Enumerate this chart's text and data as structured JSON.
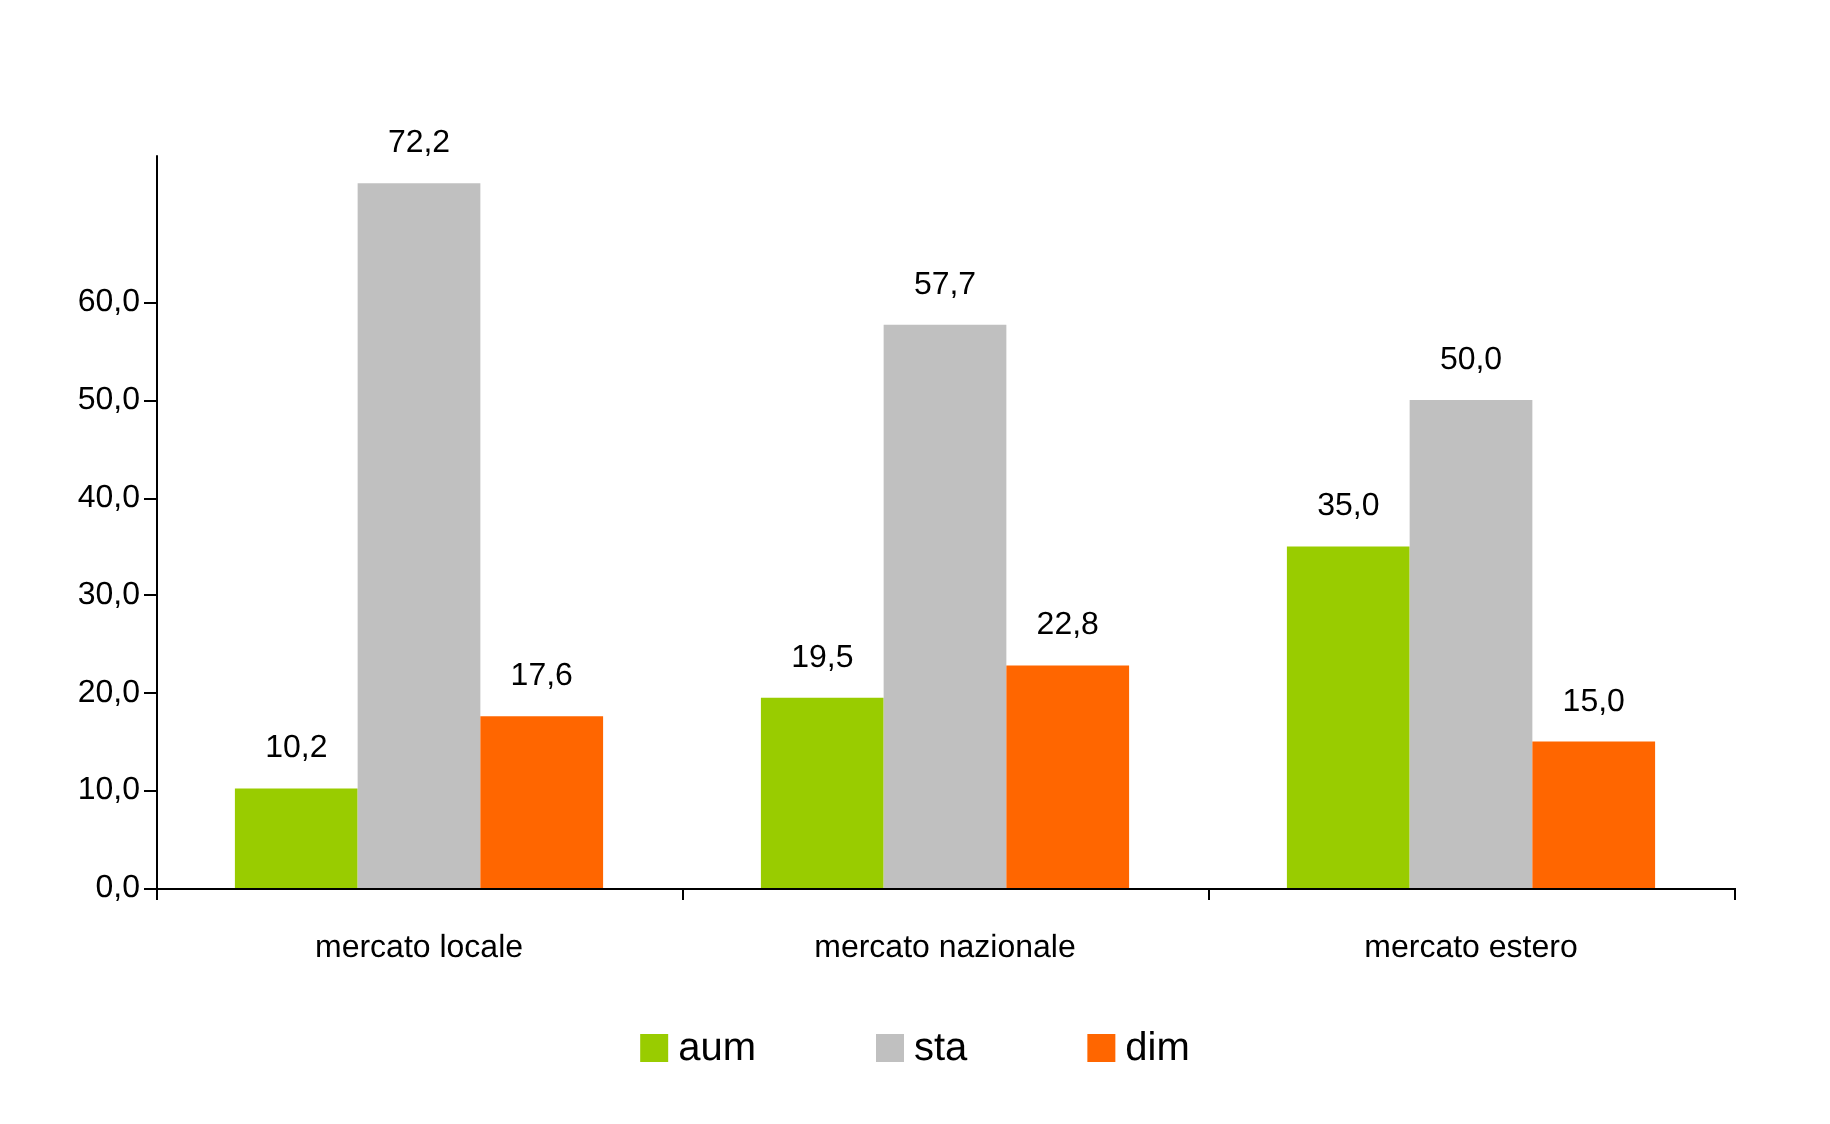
{
  "chart_data": {
    "type": "bar",
    "categories": [
      "mercato locale",
      "mercato nazionale",
      "mercato estero"
    ],
    "series": [
      {
        "name": "aum",
        "color": "#99cc00",
        "values": [
          10.2,
          19.5,
          35.0
        ],
        "value_labels": [
          "10,2",
          "19,5",
          "35,0"
        ]
      },
      {
        "name": "sta",
        "color": "#c0c0c0",
        "values": [
          72.2,
          57.7,
          50.0
        ],
        "value_labels": [
          "72,2",
          "57,7",
          "50,0"
        ]
      },
      {
        "name": "dim",
        "color": "#ff6600",
        "values": [
          17.6,
          22.8,
          15.0
        ],
        "value_labels": [
          "17,6",
          "22,8",
          "15,0"
        ]
      }
    ],
    "ylim": [
      0,
      75
    ],
    "yticks": [
      {
        "value": 0,
        "label": "0,0"
      },
      {
        "value": 10,
        "label": "10,0"
      },
      {
        "value": 20,
        "label": "20,0"
      },
      {
        "value": 30,
        "label": "30,0"
      },
      {
        "value": 40,
        "label": "40,0"
      },
      {
        "value": 50,
        "label": "50,0"
      },
      {
        "value": 60,
        "label": "60,0"
      }
    ],
    "grid": false,
    "legend": "bottom"
  }
}
